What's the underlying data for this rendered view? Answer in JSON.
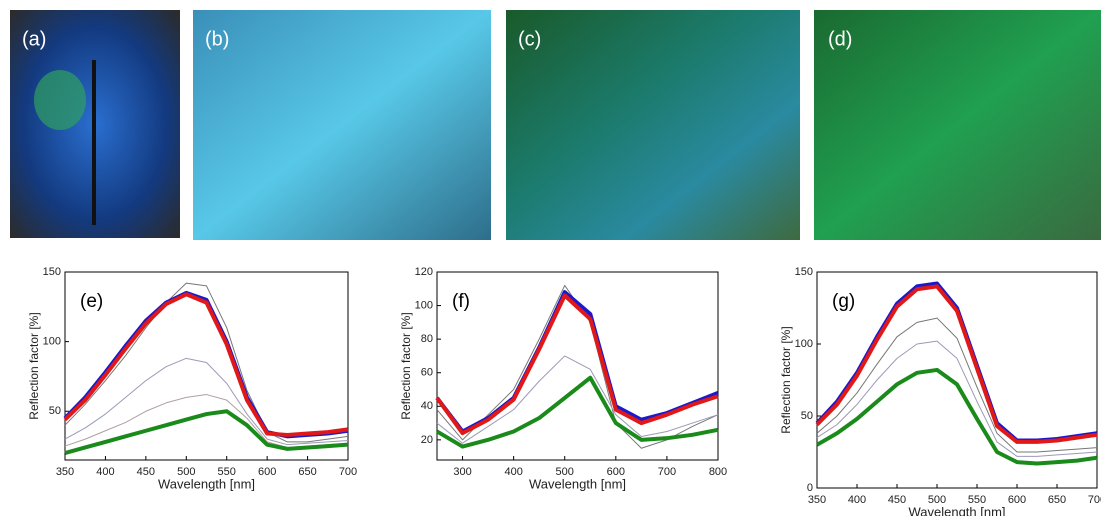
{
  "panels": [
    {
      "label": "(a)"
    },
    {
      "label": "(b)"
    },
    {
      "label": "(c)"
    },
    {
      "label": "(d)"
    }
  ],
  "chart_data": [
    {
      "type": "line",
      "label": "(e)",
      "xlabel": "Wavelength [nm]",
      "ylabel": "Reflection factor [%]",
      "xlim": [
        350,
        700
      ],
      "xticks": [
        350,
        400,
        450,
        500,
        550,
        600,
        650,
        700
      ],
      "ylim": [
        15,
        150
      ],
      "yticks": [
        50,
        100,
        150
      ],
      "x": [
        350,
        375,
        400,
        425,
        450,
        475,
        500,
        525,
        550,
        575,
        600,
        625,
        650,
        675,
        700
      ],
      "series": [
        {
          "color": "#777777",
          "values": [
            40,
            55,
            72,
            90,
            110,
            128,
            142,
            140,
            110,
            65,
            35,
            28,
            28,
            30,
            32
          ]
        },
        {
          "color": "#9a9ab8",
          "values": [
            30,
            38,
            48,
            60,
            72,
            82,
            88,
            85,
            70,
            48,
            30,
            26,
            27,
            28,
            29
          ]
        },
        {
          "color": "#b0a0a0",
          "values": [
            25,
            30,
            36,
            42,
            50,
            56,
            60,
            62,
            58,
            45,
            28,
            24,
            25,
            26,
            27
          ]
        },
        {
          "color": "#1a8a1a",
          "values": [
            20,
            24,
            28,
            32,
            36,
            40,
            44,
            48,
            50,
            40,
            26,
            23,
            24,
            25,
            26
          ]
        },
        {
          "color": "#1a1acc",
          "values": [
            45,
            60,
            78,
            97,
            115,
            128,
            135,
            130,
            100,
            60,
            35,
            32,
            33,
            34,
            36
          ]
        },
        {
          "color": "#e01818",
          "values": [
            44,
            58,
            76,
            95,
            113,
            127,
            134,
            128,
            98,
            58,
            34,
            33,
            34,
            35,
            37
          ]
        }
      ]
    },
    {
      "type": "line",
      "label": "(f)",
      "xlabel": "Wavelength [nm]",
      "ylabel": "Reflection factor [%]",
      "xlim": [
        250,
        800
      ],
      "xticks": [
        300,
        400,
        500,
        600,
        700,
        800
      ],
      "ylim": [
        8,
        120
      ],
      "yticks": [
        20,
        40,
        60,
        80,
        100,
        120
      ],
      "x": [
        250,
        300,
        350,
        400,
        450,
        500,
        550,
        600,
        650,
        700,
        750,
        800
      ],
      "series": [
        {
          "color": "#777777",
          "values": [
            38,
            20,
            35,
            50,
            80,
            112,
            90,
            30,
            15,
            20,
            28,
            35
          ]
        },
        {
          "color": "#9a9ab8",
          "values": [
            30,
            18,
            28,
            38,
            55,
            70,
            62,
            35,
            22,
            25,
            30,
            35
          ]
        },
        {
          "color": "#1a8a1a",
          "values": [
            25,
            16,
            20,
            25,
            33,
            45,
            57,
            30,
            20,
            21,
            23,
            26
          ]
        },
        {
          "color": "#1a1acc",
          "values": [
            45,
            25,
            33,
            45,
            75,
            108,
            95,
            40,
            32,
            36,
            42,
            48
          ]
        },
        {
          "color": "#e01818",
          "values": [
            45,
            24,
            32,
            44,
            74,
            106,
            92,
            38,
            30,
            35,
            41,
            46
          ]
        }
      ]
    },
    {
      "type": "line",
      "label": "(g)",
      "xlabel": "Wavelength [nm]",
      "ylabel": "Reflection factor [%]",
      "xlim": [
        350,
        700
      ],
      "xticks": [
        350,
        400,
        450,
        500,
        550,
        600,
        650,
        700
      ],
      "ylim": [
        0,
        150
      ],
      "yticks": [
        0,
        50,
        100,
        150
      ],
      "x": [
        350,
        375,
        400,
        425,
        450,
        475,
        500,
        525,
        550,
        575,
        600,
        625,
        650,
        675,
        700
      ],
      "series": [
        {
          "color": "#777777",
          "values": [
            38,
            50,
            66,
            86,
            105,
            115,
            118,
            104,
            70,
            38,
            25,
            25,
            26,
            27,
            28
          ]
        },
        {
          "color": "#9a9ab8",
          "values": [
            35,
            44,
            58,
            75,
            90,
            100,
            102,
            90,
            60,
            32,
            22,
            22,
            23,
            24,
            25
          ]
        },
        {
          "color": "#1a8a1a",
          "values": [
            30,
            38,
            48,
            60,
            72,
            80,
            82,
            72,
            48,
            25,
            18,
            17,
            18,
            19,
            21
          ]
        },
        {
          "color": "#1a1acc",
          "values": [
            45,
            60,
            80,
            105,
            128,
            140,
            142,
            125,
            85,
            45,
            33,
            33,
            34,
            36,
            38
          ]
        },
        {
          "color": "#e01818",
          "values": [
            44,
            58,
            78,
            103,
            126,
            138,
            140,
            123,
            83,
            43,
            32,
            32,
            33,
            35,
            37
          ]
        }
      ]
    }
  ]
}
